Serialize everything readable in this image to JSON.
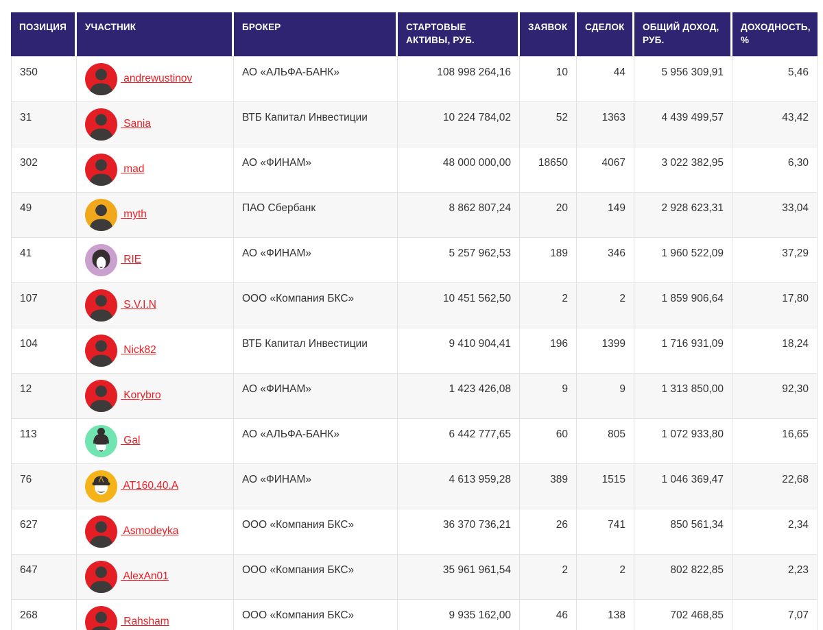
{
  "theme": {
    "header_bg": "#2e2472",
    "link_color": "#ee1d23",
    "row_alt_bg": "#f7f7f7",
    "border_color": "#e2e2e2",
    "text_color": "#333333"
  },
  "table": {
    "columns": [
      {
        "key": "position",
        "label": "ПОЗИЦИЯ"
      },
      {
        "key": "name",
        "label": "УЧАСТНИК"
      },
      {
        "key": "broker",
        "label": "БРОКЕР"
      },
      {
        "key": "assets",
        "label": "СТАРТОВЫЕ АКТИВЫ, РУБ."
      },
      {
        "key": "orders",
        "label": "ЗАЯВОК"
      },
      {
        "key": "deals",
        "label": "СДЕЛОК"
      },
      {
        "key": "income",
        "label": "ОБЩИЙ ДОХОД, РУБ."
      },
      {
        "key": "yield",
        "label": "ДОХОДНОСТЬ, %"
      }
    ],
    "rows": [
      {
        "position": "350",
        "name": " andrewustinov",
        "avatar": {
          "type": "person-silhouette",
          "color": "#e31e24"
        },
        "broker": "АО «АЛЬФА-БАНК»",
        "assets": "108 998 264,16",
        "orders": "10",
        "deals": "44",
        "income": "5 956 309,91",
        "yield": "5,46"
      },
      {
        "position": "31",
        "name": " Sania",
        "avatar": {
          "type": "person-silhouette",
          "color": "#e31e24"
        },
        "broker": "ВТБ Капитал Инвестиции",
        "assets": "10 224 784,02",
        "orders": "52",
        "deals": "1363",
        "income": "4 439 499,57",
        "yield": "43,42"
      },
      {
        "position": "302",
        "name": " mad",
        "avatar": {
          "type": "person-silhouette",
          "color": "#e31e24"
        },
        "broker": "АО «ФИНАМ»",
        "assets": "48 000 000,00",
        "orders": "18650",
        "deals": "4067",
        "income": "3 022 382,95",
        "yield": "6,30"
      },
      {
        "position": "49",
        "name": " myth",
        "avatar": {
          "type": "person-silhouette",
          "color": "#f2a81d"
        },
        "broker": "ПАО Сбербанк",
        "assets": "8 862 807,24",
        "orders": "20",
        "deals": "149",
        "income": "2 928 623,31",
        "yield": "33,04"
      },
      {
        "position": "41",
        "name": " RIE",
        "avatar": {
          "type": "woman-bob",
          "color": "#c9a0ce"
        },
        "broker": "АО «ФИНАМ»",
        "assets": "5 257 962,53",
        "orders": "189",
        "deals": "346",
        "income": "1 960 522,09",
        "yield": "37,29"
      },
      {
        "position": "107",
        "name": " S.V.I.N",
        "avatar": {
          "type": "person-silhouette",
          "color": "#e31e24"
        },
        "broker": "ООО «Компания БКС»",
        "assets": "10 451 562,50",
        "orders": "2",
        "deals": "2",
        "income": "1 859 906,64",
        "yield": "17,80"
      },
      {
        "position": "104",
        "name": " Nick82",
        "avatar": {
          "type": "person-silhouette",
          "color": "#e31e24"
        },
        "broker": "ВТБ Капитал Инвестиции",
        "assets": "9 410 904,41",
        "orders": "196",
        "deals": "1399",
        "income": "1 716 931,09",
        "yield": "18,24"
      },
      {
        "position": "12",
        "name": " Korybro",
        "avatar": {
          "type": "person-silhouette",
          "color": "#e31e24"
        },
        "broker": "АО «ФИНАМ»",
        "assets": "1 423 426,08",
        "orders": "9",
        "deals": "9",
        "income": "1 313 850,00",
        "yield": "92,30"
      },
      {
        "position": "113",
        "name": " Gal",
        "avatar": {
          "type": "woman-bun-sunglasses",
          "color": "#70e5b2"
        },
        "broker": "АО «АЛЬФА-БАНК»",
        "assets": "6 442 777,65",
        "orders": "60",
        "deals": "805",
        "income": "1 072 933,80",
        "yield": "16,65"
      },
      {
        "position": "76",
        "name": " AT160.40.A",
        "avatar": {
          "type": "man-cap-mustache",
          "color": "#f5b31a"
        },
        "broker": "АО «ФИНАМ»",
        "assets": "4 613 959,28",
        "orders": "389",
        "deals": "1515",
        "income": "1 046 369,47",
        "yield": "22,68"
      },
      {
        "position": "627",
        "name": " Asmodeyka",
        "avatar": {
          "type": "person-silhouette",
          "color": "#e31e24"
        },
        "broker": "ООО «Компания БКС»",
        "assets": "36 370 736,21",
        "orders": "26",
        "deals": "741",
        "income": "850 561,34",
        "yield": "2,34"
      },
      {
        "position": "647",
        "name": " AlexAn01",
        "avatar": {
          "type": "person-silhouette",
          "color": "#e31e24"
        },
        "broker": "ООО «Компания БКС»",
        "assets": "35 961 961,54",
        "orders": "2",
        "deals": "2",
        "income": "802 822,85",
        "yield": "2,23"
      },
      {
        "position": "268",
        "name": " Rahsham",
        "avatar": {
          "type": "person-silhouette",
          "color": "#e31e24"
        },
        "broker": "ООО «Компания БКС»",
        "assets": "9 935 162,00",
        "orders": "46",
        "deals": "138",
        "income": "702 468,85",
        "yield": "7,07"
      }
    ]
  }
}
